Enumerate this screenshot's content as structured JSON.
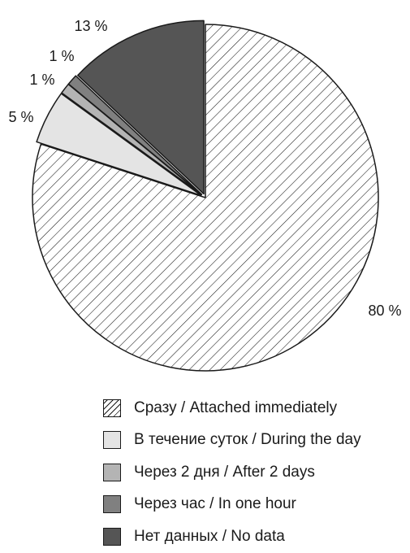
{
  "chart_data": {
    "type": "pie",
    "slices": [
      {
        "label": "Сразу / Attached immediately",
        "value": 80,
        "value_label": "80 %",
        "fill": "hatch"
      },
      {
        "label": "В течение суток / During the day",
        "value": 5,
        "value_label": "5 %",
        "fill": "#e4e4e4"
      },
      {
        "label": "Через 2 дня / After 2 days",
        "value": 1,
        "value_label": "1 %",
        "fill": "#b4b4b4"
      },
      {
        "label": "Через час / In one hour",
        "value": 1,
        "value_label": "1 %",
        "fill": "#808080"
      },
      {
        "label": "Нет данных / No data",
        "value": 13,
        "value_label": "13 %",
        "fill": "#555555"
      }
    ],
    "legend_position": "bottom",
    "start": "12 o'clock, clockwise",
    "exploded": true
  }
}
